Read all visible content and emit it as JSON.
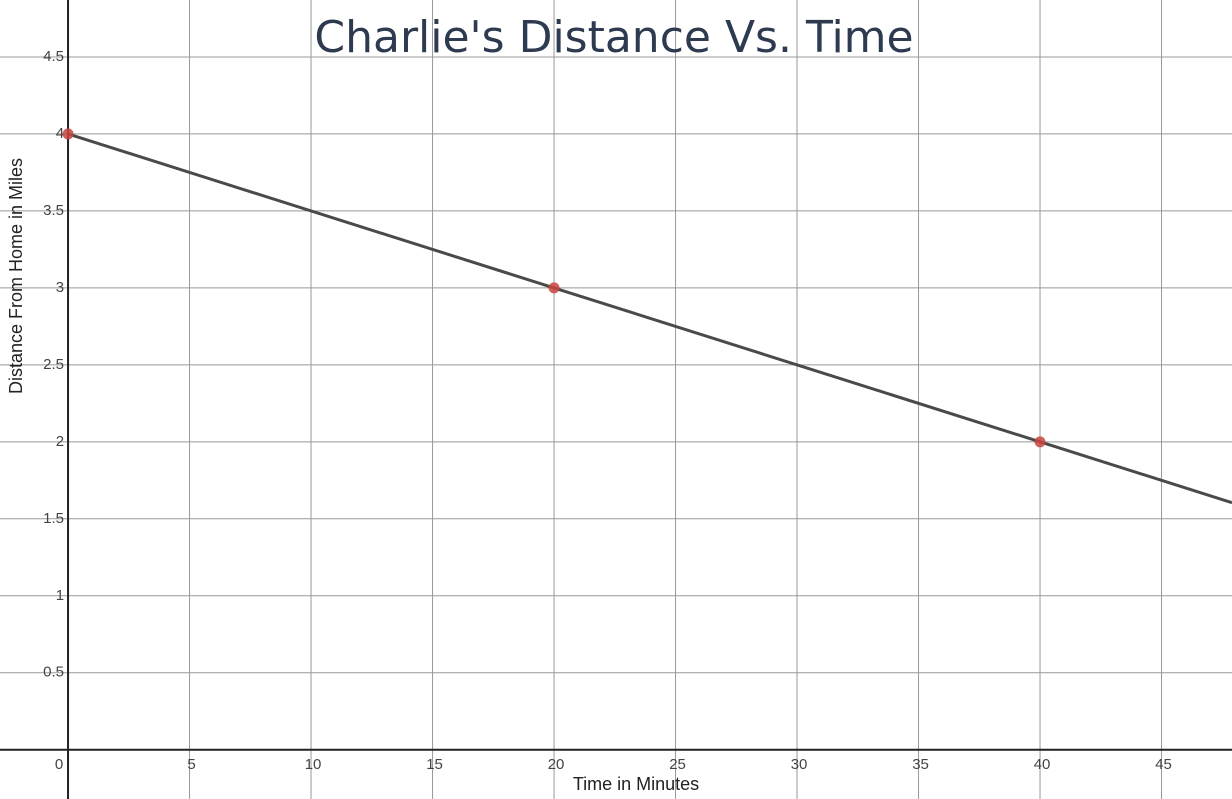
{
  "chart_data": {
    "type": "line",
    "title": "Charlie's Distance Vs. Time",
    "x_label": "Time in Minutes",
    "y_label": "Distance From Home in Miles",
    "x": [
      0,
      20,
      40,
      47.9
    ],
    "series": [
      {
        "color": "#4a4a4a",
        "values": [
          4,
          3,
          2,
          1.605
        ]
      }
    ],
    "points": {
      "x": [
        0,
        20,
        40
      ],
      "values": [
        4,
        3,
        2
      ],
      "color": "#c74440"
    },
    "xlim": [
      -2.8,
      47.9
    ],
    "ylim": [
      -0.32,
      4.87
    ],
    "xticks": [
      0,
      5,
      10,
      15,
      20,
      25,
      30,
      35,
      40,
      45
    ],
    "yticks": [
      0.5,
      1,
      1.5,
      2,
      2.5,
      3,
      3.5,
      4,
      4.5
    ],
    "grid": true
  }
}
